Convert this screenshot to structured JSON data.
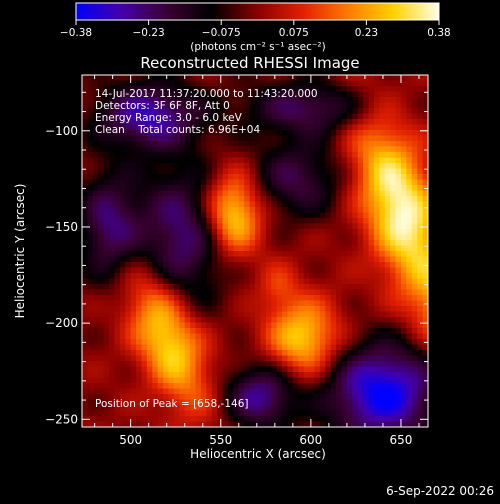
{
  "chart_data": {
    "type": "heatmap",
    "title": "Reconstructed RHESSI Image",
    "xlabel": "Heliocentric X (arcsec)",
    "ylabel": "Heliocentric Y (arcsec)",
    "xlim": [
      473,
      665
    ],
    "ylim": [
      -254,
      -71
    ],
    "x_ticks": [
      500,
      550,
      600,
      650
    ],
    "y_ticks": [
      -100,
      -150,
      -200,
      -250
    ],
    "grid": false,
    "colorbar": {
      "unit_label": "(photons cm⁻² s⁻¹ asec⁻²)",
      "range": [
        -0.38,
        0.38
      ],
      "ticks": [
        "−0.38",
        "−0.23",
        "−0.075",
        "0.075",
        "0.23",
        "0.38"
      ],
      "colors": [
        "#0000ff",
        "#4400aa",
        "#3a0033",
        "#000000",
        "#8a0000",
        "#e22000",
        "#ff7a00",
        "#ffd200",
        "#ffffe8"
      ]
    },
    "annotations": [
      "14-Jul-2017 11:37:20.000 to 11:43:20.000",
      "Detectors: 3F 6F 8F, Att 0",
      "Energy Range: 3.0 - 6.0 keV",
      "Clean    Total counts: 6.96E+04"
    ],
    "peak_text": "Position of Peak = [658,-146]",
    "sources": [
      {
        "x": 557,
        "y": -143,
        "amp": 0.34,
        "sx": 11,
        "sy": 15,
        "angle": 0
      },
      {
        "x": 596,
        "y": -208,
        "amp": 0.3,
        "sx": 14,
        "sy": 14,
        "angle": 0
      },
      {
        "x": 520,
        "y": -207,
        "amp": 0.33,
        "sx": 12,
        "sy": 27,
        "angle": 25
      },
      {
        "x": 650,
        "y": -141,
        "amp": 0.38,
        "sx": 14,
        "sy": 36,
        "angle": 20
      },
      {
        "x": 672,
        "y": -192,
        "amp": 0.12,
        "sx": 10,
        "sy": 14,
        "angle": 0
      },
      {
        "x": 582,
        "y": -181,
        "amp": 0.1,
        "sx": 8,
        "sy": 9,
        "angle": 0
      },
      {
        "x": 528,
        "y": -155,
        "amp": -0.25,
        "sx": 18,
        "sy": 26,
        "angle": 0
      },
      {
        "x": 592,
        "y": -125,
        "amp": -0.2,
        "sx": 18,
        "sy": 14,
        "angle": 0
      },
      {
        "x": 640,
        "y": -236,
        "amp": -0.38,
        "sx": 22,
        "sy": 18,
        "angle": 0
      },
      {
        "x": 572,
        "y": -238,
        "amp": -0.27,
        "sx": 14,
        "sy": 12,
        "angle": 0
      },
      {
        "x": 488,
        "y": -150,
        "amp": -0.24,
        "sx": 12,
        "sy": 20,
        "angle": 0
      },
      {
        "x": 510,
        "y": -92,
        "amp": -0.3,
        "sx": 20,
        "sy": 12,
        "angle": 0
      },
      {
        "x": 600,
        "y": -88,
        "amp": -0.22,
        "sx": 26,
        "sy": 10,
        "angle": 0
      }
    ]
  },
  "footer": {
    "date": "6-Sep-2022 00:26"
  }
}
